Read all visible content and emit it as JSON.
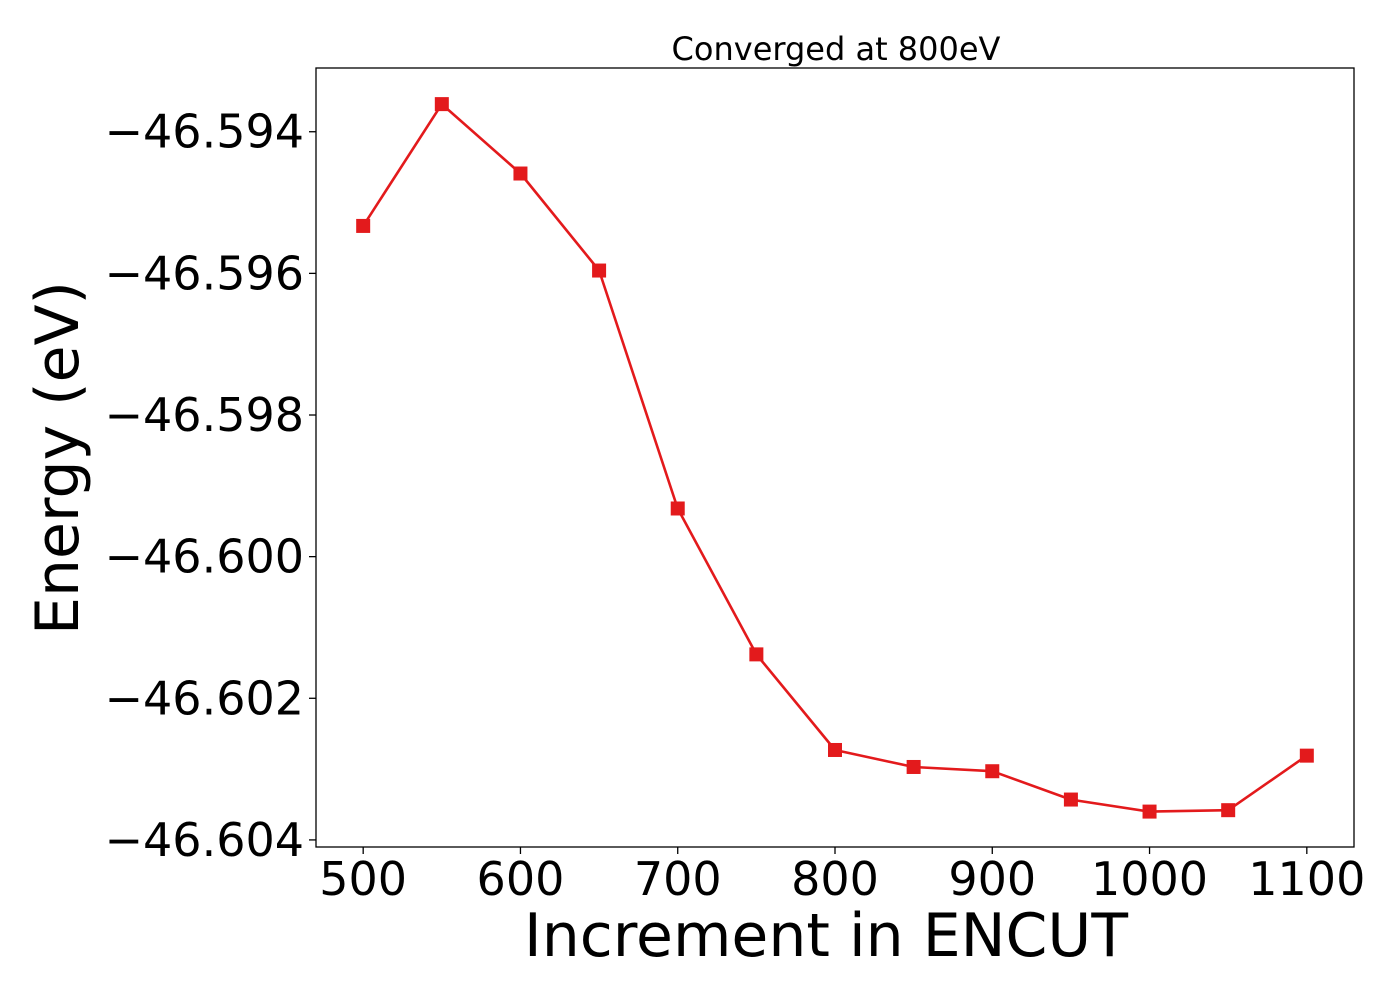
{
  "chart_data": {
    "type": "line",
    "title": "Converged at 800eV",
    "xlabel": "Increment in ENCUT",
    "ylabel": "Energy (eV)",
    "xlim": [
      470,
      1130
    ],
    "ylim": [
      -46.6041,
      -46.5931
    ],
    "x_ticks": [
      500,
      600,
      700,
      800,
      900,
      1000,
      1100
    ],
    "x_tick_labels": [
      "500",
      "600",
      "700",
      "800",
      "900",
      "1000",
      "1100"
    ],
    "y_ticks": [
      -46.594,
      -46.596,
      -46.598,
      -46.6,
      -46.602,
      -46.604
    ],
    "y_tick_labels": [
      "−46.594",
      "−46.596",
      "−46.598",
      "−46.600",
      "−46.602",
      "−46.604"
    ],
    "grid": false,
    "series": [
      {
        "color": "#e31a1c",
        "marker": "square",
        "x": [
          500,
          550,
          600,
          650,
          700,
          750,
          800,
          850,
          900,
          950,
          1000,
          1050,
          1100
        ],
        "y": [
          -46.59533,
          -46.59361,
          -46.59459,
          -46.59596,
          -46.59932,
          -46.60138,
          -46.60273,
          -46.60297,
          -46.60303,
          -46.60343,
          -46.6036,
          -46.60358,
          -46.60281
        ]
      }
    ]
  }
}
